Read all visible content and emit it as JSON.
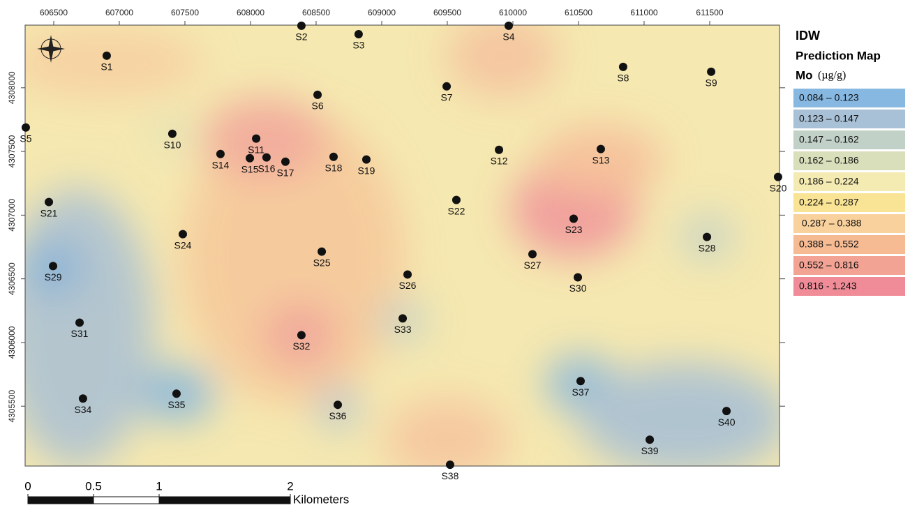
{
  "map": {
    "xlim": [
      606282,
      612032
    ],
    "ylim": [
      4305030,
      4308492
    ],
    "xticks": [
      606500,
      607000,
      607500,
      608000,
      608500,
      609000,
      609500,
      610000,
      610500,
      611000,
      611500
    ],
    "yticks": [
      4305500,
      4306000,
      4306500,
      4307000,
      4307500,
      4308000
    ],
    "stations": [
      {
        "name": "S1",
        "x": 606904,
        "y": 4308252
      },
      {
        "name": "S2",
        "x": 608388,
        "y": 4308487
      },
      {
        "name": "S3",
        "x": 608824,
        "y": 4308421
      },
      {
        "name": "S4",
        "x": 609968,
        "y": 4308487
      },
      {
        "name": "S5",
        "x": 606287,
        "y": 4307688
      },
      {
        "name": "S6",
        "x": 608511,
        "y": 4307945
      },
      {
        "name": "S7",
        "x": 609495,
        "y": 4308011
      },
      {
        "name": "S8",
        "x": 610840,
        "y": 4308164
      },
      {
        "name": "S9",
        "x": 611511,
        "y": 4308126
      },
      {
        "name": "S10",
        "x": 607404,
        "y": 4307639
      },
      {
        "name": "S11",
        "x": 608043,
        "y": 4307601
      },
      {
        "name": "S12",
        "x": 609894,
        "y": 4307513
      },
      {
        "name": "S13",
        "x": 610670,
        "y": 4307519
      },
      {
        "name": "S14",
        "x": 607771,
        "y": 4307480
      },
      {
        "name": "S15",
        "x": 607995,
        "y": 4307447
      },
      {
        "name": "S16",
        "x": 608122,
        "y": 4307453
      },
      {
        "name": "S17",
        "x": 608266,
        "y": 4307420
      },
      {
        "name": "S18",
        "x": 608633,
        "y": 4307458
      },
      {
        "name": "S19",
        "x": 608883,
        "y": 4307437
      },
      {
        "name": "S20",
        "x": 612021,
        "y": 4307300
      },
      {
        "name": "S21",
        "x": 606463,
        "y": 4307103
      },
      {
        "name": "S22",
        "x": 609569,
        "y": 4307119
      },
      {
        "name": "S23",
        "x": 610463,
        "y": 4306972
      },
      {
        "name": "S24",
        "x": 607484,
        "y": 4306851
      },
      {
        "name": "S25",
        "x": 608543,
        "y": 4306714
      },
      {
        "name": "S26",
        "x": 609197,
        "y": 4306534
      },
      {
        "name": "S27",
        "x": 610149,
        "y": 4306693
      },
      {
        "name": "S28",
        "x": 611479,
        "y": 4306829
      },
      {
        "name": "S29",
        "x": 606495,
        "y": 4306600
      },
      {
        "name": "S30",
        "x": 610495,
        "y": 4306512
      },
      {
        "name": "S31",
        "x": 606697,
        "y": 4306156
      },
      {
        "name": "S32",
        "x": 608388,
        "y": 4306058
      },
      {
        "name": "S33",
        "x": 609160,
        "y": 4306189
      },
      {
        "name": "S34",
        "x": 606723,
        "y": 4305560
      },
      {
        "name": "S35",
        "x": 607436,
        "y": 4305598
      },
      {
        "name": "S36",
        "x": 608665,
        "y": 4305511
      },
      {
        "name": "S37",
        "x": 610516,
        "y": 4305697
      },
      {
        "name": "S38",
        "x": 609521,
        "y": 4305040
      },
      {
        "name": "S39",
        "x": 611043,
        "y": 4305237
      },
      {
        "name": "S40",
        "x": 611628,
        "y": 4305462
      }
    ]
  },
  "legend": {
    "title": "IDW",
    "subtitle": "Prediction Map",
    "variable": "Mo",
    "unit": "(µg/g)",
    "classes": [
      {
        "label": "0.084 – 0.123",
        "color": "#86b8e2"
      },
      {
        "label": "0.123 – 0.147",
        "color": "#a9c1d6"
      },
      {
        "label": "0.147 – 0.162",
        "color": "#c2d1c8"
      },
      {
        "label": "0.162 – 0.186",
        "color": "#d8dfba"
      },
      {
        "label": "0.186 – 0.224",
        "color": "#f4ebb2"
      },
      {
        "label": "0.224 – 0.287",
        "color": "#f9e394"
      },
      {
        "label": " 0.287 – 0.388",
        "color": "#f9d19d"
      },
      {
        "label": "0.388 – 0.552",
        "color": "#f6bb93"
      },
      {
        "label": "0.552 – 0.816",
        "color": "#f3a394"
      },
      {
        "label": "0.816 - 1.243",
        "color": "#f08c98"
      }
    ]
  },
  "scale_bar": {
    "ticks": [
      0,
      0.5,
      1,
      2
    ],
    "unit": "Kilometers"
  }
}
